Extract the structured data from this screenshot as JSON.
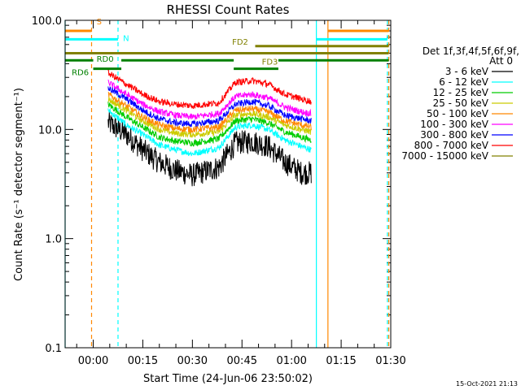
{
  "chart_data": {
    "type": "line",
    "title": "RHESSI Count Rates",
    "xlabel": "Start Time (24-Jun-06 23:50:02)",
    "ylabel": "Count Rate (s⁻¹ detector segment⁻¹)",
    "y_scale": "log",
    "ylim": [
      0.1,
      100
    ],
    "xlim_minutes": [
      -8.5,
      90
    ],
    "x_ticks": [
      {
        "m": 0,
        "label": "00:00"
      },
      {
        "m": 15,
        "label": "00:15"
      },
      {
        "m": 30,
        "label": "00:30"
      },
      {
        "m": 45,
        "label": "00:45"
      },
      {
        "m": 60,
        "label": "01:00"
      },
      {
        "m": 75,
        "label": "01:15"
      },
      {
        "m": 90,
        "label": "01:30"
      }
    ],
    "y_ticks": [
      {
        "v": 0.1,
        "label": "0.1"
      },
      {
        "v": 1,
        "label": "1.0"
      },
      {
        "v": 10,
        "label": "10.0"
      },
      {
        "v": 100,
        "label": "100.0"
      }
    ],
    "legend": {
      "placement": "right",
      "header": [
        "Det 1f,3f,4f,5f,6f,9f,",
        "Att 0"
      ]
    },
    "series": [
      {
        "name": "3 - 6 keV",
        "color": "#000000",
        "values": [
          11.5,
          9,
          6.5,
          5,
          4.2,
          3.8,
          4.5,
          7.5,
          7.8,
          7,
          5,
          4,
          4
        ]
      },
      {
        "name": "6 - 12 keV",
        "color": "#00ffff",
        "values": [
          15,
          11,
          9,
          7.2,
          6.5,
          6,
          6.8,
          10.5,
          11,
          10,
          8,
          7,
          6.5
        ]
      },
      {
        "name": "12 - 25 keV",
        "color": "#00cc00",
        "values": [
          17,
          13,
          10.5,
          8.5,
          7.8,
          7.5,
          8.2,
          12,
          12.5,
          11.5,
          9.5,
          8.5,
          8
        ]
      },
      {
        "name": "25 - 50 keV",
        "color": "#cccc00",
        "values": [
          19,
          15,
          12,
          10,
          9.2,
          9,
          9.5,
          13.5,
          14,
          13,
          11,
          10,
          9.5
        ]
      },
      {
        "name": "50 - 100 keV",
        "color": "#ff8800",
        "values": [
          21,
          16.5,
          13,
          11,
          10.2,
          10,
          10.5,
          15,
          15.5,
          14.5,
          12,
          11,
          10.5
        ]
      },
      {
        "name": "100 - 300 keV",
        "color": "#ff00ff",
        "values": [
          27,
          21,
          17,
          14.5,
          13.5,
          13,
          14,
          20,
          21,
          19.5,
          16,
          14.5,
          14
        ]
      },
      {
        "name": "300 - 800 keV",
        "color": "#0000ff",
        "values": [
          24,
          19,
          15,
          12.5,
          11.5,
          11.2,
          12,
          17,
          18,
          16.5,
          13.5,
          12.5,
          12
        ]
      },
      {
        "name": "800 - 7000 keV",
        "color": "#ff0000",
        "values": [
          33,
          26,
          21,
          18,
          17,
          16.5,
          17.5,
          27,
          28,
          26,
          21,
          19,
          18
        ]
      },
      {
        "name": "7000 - 15000 keV",
        "color": "#808000",
        "values": []
      }
    ],
    "series_x_minutes": [
      4.5,
      10,
      15,
      20,
      25,
      30,
      38,
      43,
      48,
      53,
      58,
      63,
      66
    ],
    "annotations": {
      "vertical_lines": [
        {
          "m": -8.5,
          "color": "#00ffff",
          "style": "solid"
        },
        {
          "m": -0.5,
          "color": "#ff8800",
          "style": "dashed"
        },
        {
          "m": 7.5,
          "color": "#00ffff",
          "style": "dashed"
        },
        {
          "m": 67.5,
          "color": "#00ffff",
          "style": "solid"
        },
        {
          "m": 71,
          "color": "#ff8800",
          "style": "solid"
        },
        {
          "m": 89,
          "color": "#00ffff",
          "style": "dashed"
        },
        {
          "m": 89.4,
          "color": "#ff8800",
          "style": "dashed"
        }
      ],
      "flag_bars": [
        {
          "label": "S",
          "color": "#ff8800",
          "y": 80,
          "segments": [
            [
              -8.5,
              -0.5
            ],
            [
              71,
              89.4
            ]
          ]
        },
        {
          "label": "N",
          "color": "#00ffff",
          "y": 67,
          "segments": [
            [
              -8.5,
              7.5
            ],
            [
              67.5,
              89
            ]
          ]
        },
        {
          "label": "FD2",
          "color": "#808000",
          "y": 58,
          "segments": [
            [
              49,
              89.4
            ]
          ]
        },
        {
          "label": "FD3",
          "color": "#808000",
          "y": 50,
          "segments": [
            [
              -8.5,
              89.4
            ]
          ]
        },
        {
          "label": "RD0",
          "color": "#008000",
          "y": 43,
          "segments": [
            [
              -8.5,
              0
            ],
            [
              8.5,
              42.5
            ],
            [
              56,
              89.4
            ]
          ]
        },
        {
          "label": "RD6",
          "color": "#008000",
          "y": 36,
          "segments": [
            [
              0,
              8.5
            ],
            [
              42.5,
              56
            ]
          ]
        }
      ]
    }
  },
  "footer": {
    "date": "15-Oct-2021 21:13"
  }
}
